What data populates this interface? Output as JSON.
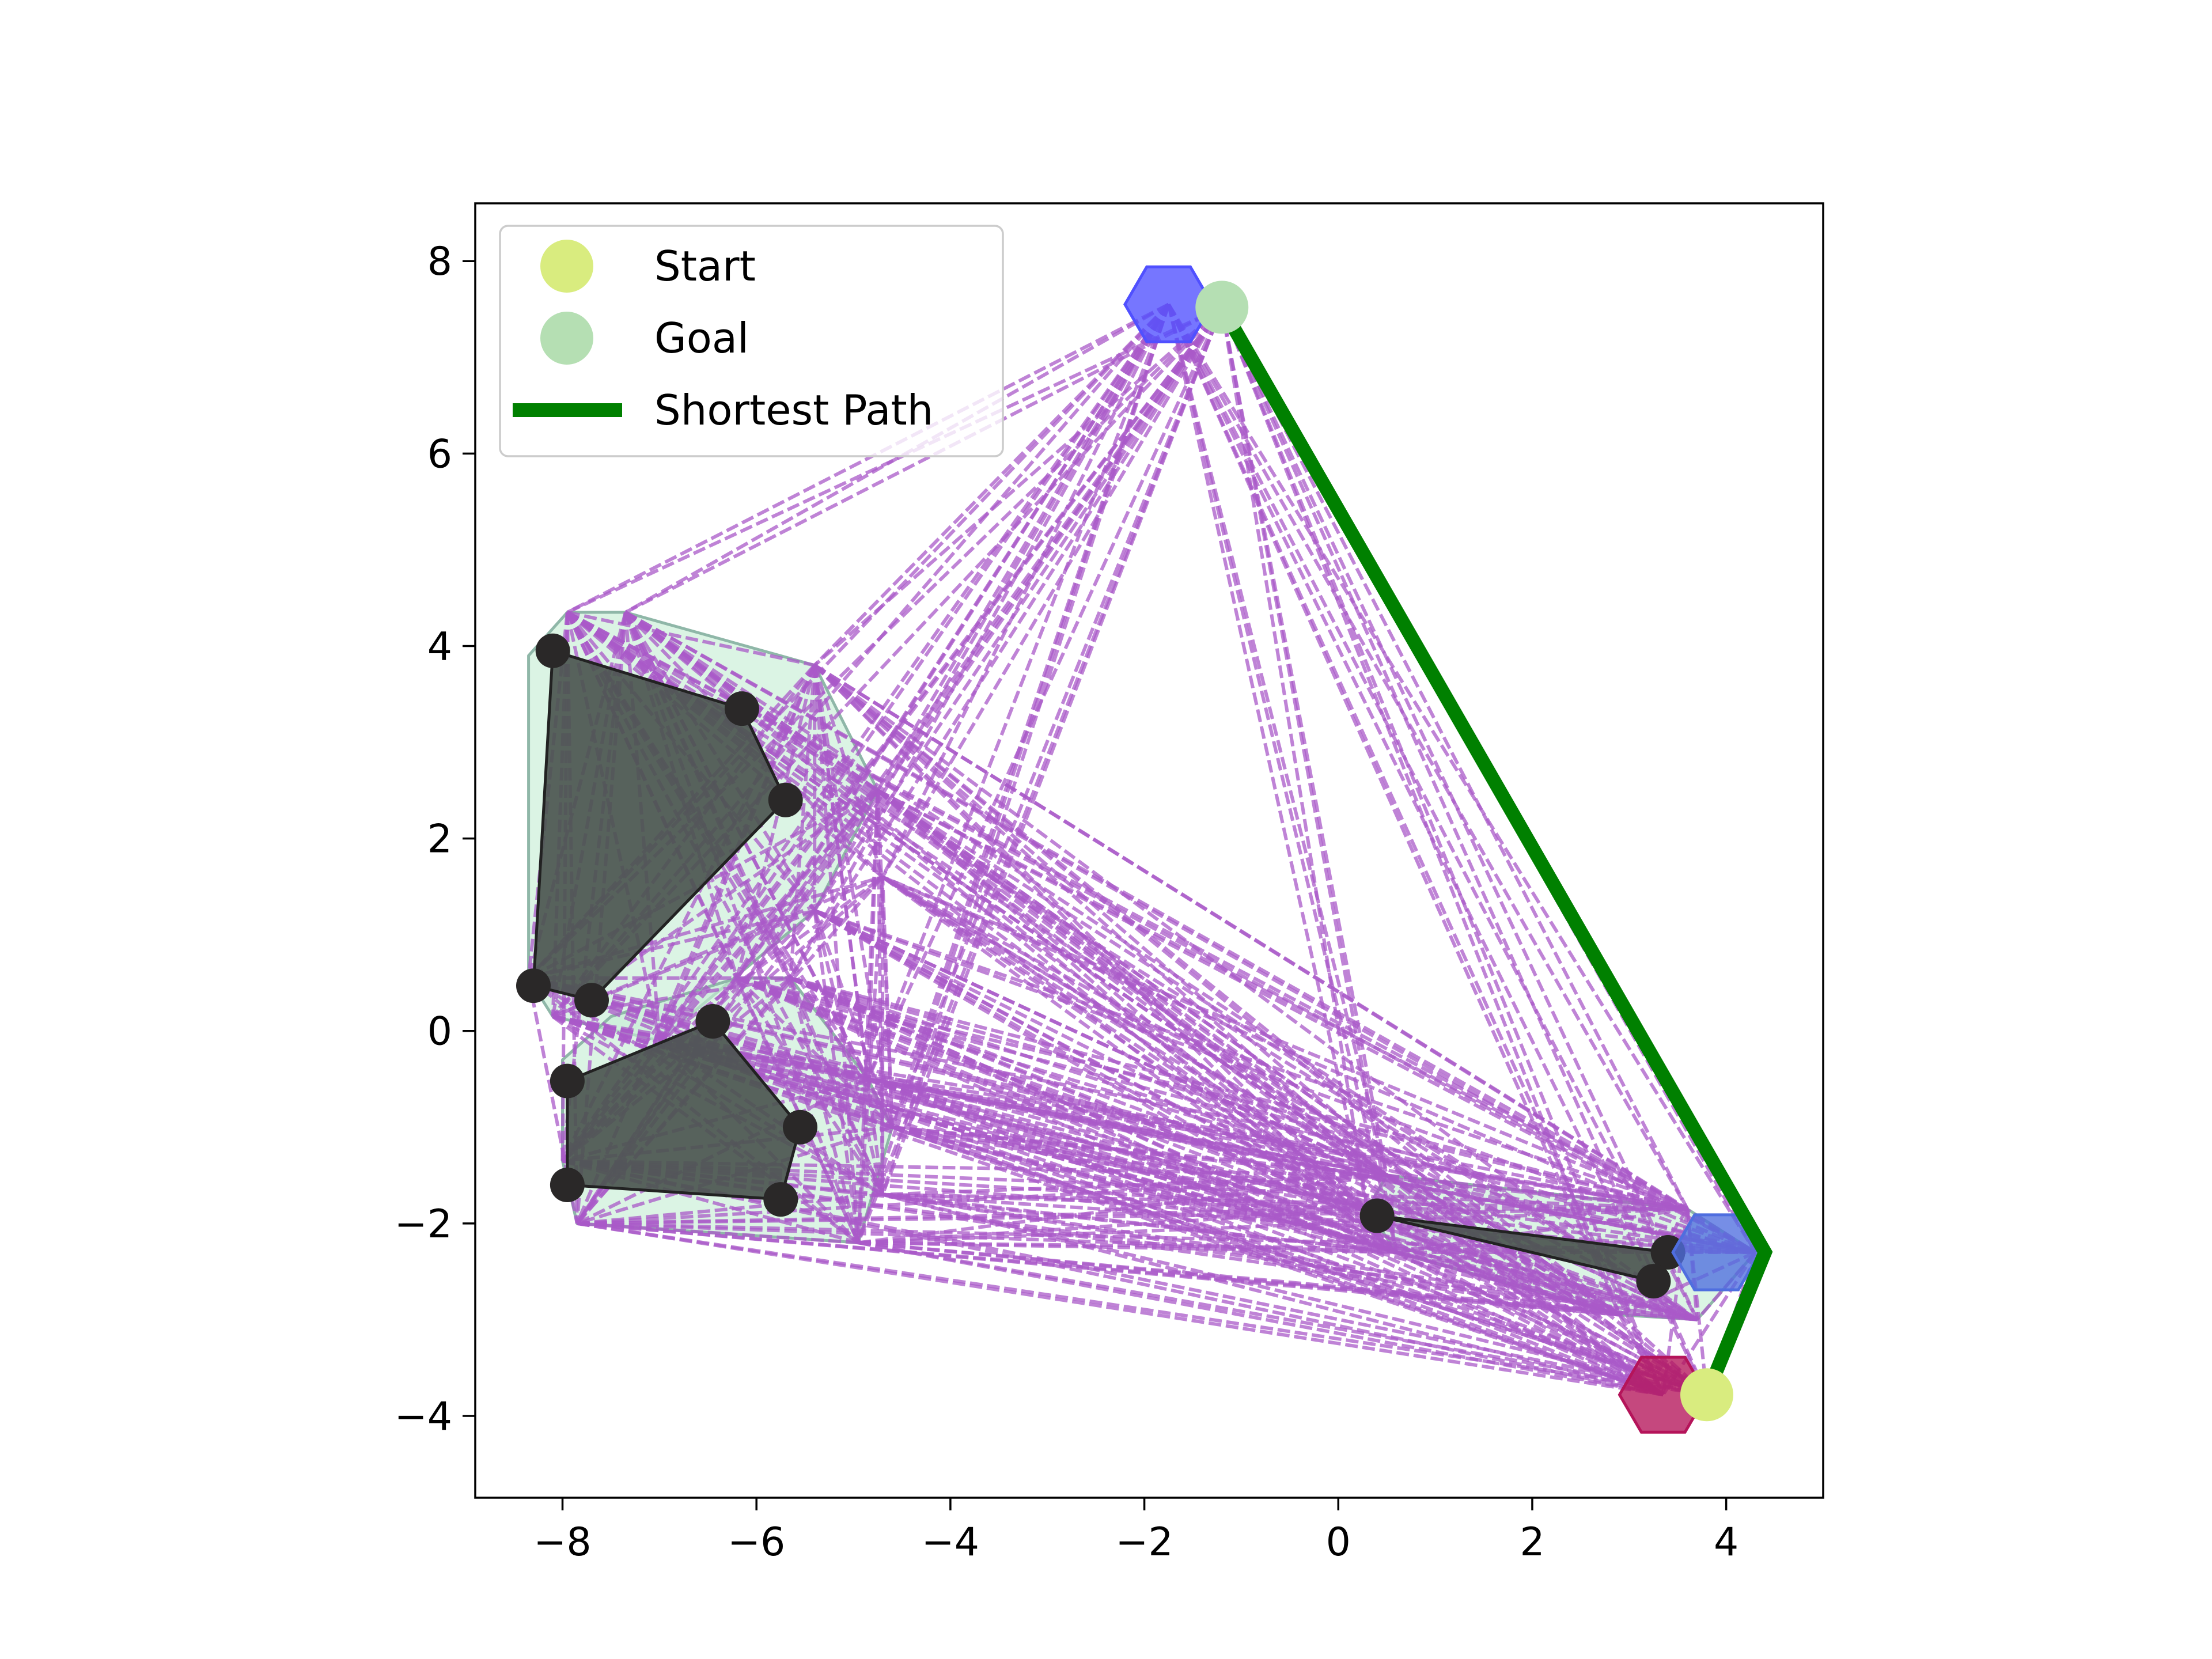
{
  "chart_data": {
    "type": "scatter",
    "xlim": [
      -8.9,
      5.0
    ],
    "ylim": [
      -4.85,
      8.6
    ],
    "xticks": [
      -8,
      -6,
      -4,
      -2,
      0,
      2,
      4
    ],
    "yticks": [
      -4,
      -2,
      0,
      2,
      4,
      6,
      8
    ],
    "xtick_labels": [
      "−8",
      "−6",
      "−4",
      "−2",
      "0",
      "2",
      "4"
    ],
    "ytick_labels": [
      "−4",
      "−2",
      "0",
      "2",
      "4",
      "6",
      "8"
    ],
    "grid": false,
    "legend": {
      "placement": "upper-left",
      "entries": [
        {
          "label": "Start",
          "marker": "circle",
          "color": "#d9ec7f"
        },
        {
          "label": "Goal",
          "marker": "circle",
          "color": "#b5dfb3"
        },
        {
          "label": "Shortest Path",
          "marker": "line",
          "color": "#008000"
        }
      ]
    },
    "start": {
      "x": 3.8,
      "y": -3.78
    },
    "goal": {
      "x": -1.2,
      "y": 7.52
    },
    "shortest_path": [
      [
        -1.2,
        7.52
      ],
      [
        4.4,
        -2.3
      ],
      [
        3.8,
        -3.78
      ]
    ],
    "robot_hexagons": [
      {
        "center": [
          -1.75,
          7.55
        ],
        "color": "#5050ff"
      },
      {
        "center": [
          3.35,
          -3.78
        ],
        "color": "#b5145a"
      },
      {
        "center": [
          3.9,
          -2.3
        ],
        "color": "#4f6edf"
      }
    ],
    "obstacles": [
      {
        "vertices": [
          [
            -8.1,
            3.95
          ],
          [
            -6.15,
            3.35
          ],
          [
            -5.7,
            2.4
          ],
          [
            -7.7,
            0.32
          ],
          [
            -8.3,
            0.47
          ]
        ]
      },
      {
        "vertices": [
          [
            -6.45,
            0.1
          ],
          [
            -5.55,
            -1.0
          ],
          [
            -5.75,
            -1.75
          ],
          [
            -7.95,
            -1.6
          ],
          [
            -7.95,
            -0.52
          ]
        ]
      },
      {
        "vertices": [
          [
            0.4,
            -1.92
          ],
          [
            3.4,
            -2.3
          ],
          [
            3.25,
            -2.6
          ]
        ]
      }
    ],
    "inflated_obstacles": [
      {
        "vertices": [
          [
            -7.95,
            4.35
          ],
          [
            -7.35,
            4.35
          ],
          [
            -5.4,
            3.8
          ],
          [
            -4.75,
            2.5
          ],
          [
            -5.4,
            1.25
          ],
          [
            -7.0,
            -0.1
          ],
          [
            -8.1,
            0.15
          ],
          [
            -8.35,
            0.55
          ],
          [
            -8.35,
            3.9
          ]
        ]
      },
      {
        "vertices": [
          [
            -6.2,
            0.55
          ],
          [
            -5.65,
            0.55
          ],
          [
            -4.85,
            -0.5
          ],
          [
            -4.6,
            -1.0
          ],
          [
            -4.95,
            -2.2
          ],
          [
            -7.85,
            -2.0
          ],
          [
            -8.0,
            -1.35
          ],
          [
            -8.0,
            -0.3
          ],
          [
            -7.5,
            0.15
          ]
        ]
      },
      {
        "vertices": [
          [
            0.5,
            -1.5
          ],
          [
            3.6,
            -1.85
          ],
          [
            4.3,
            -2.3
          ],
          [
            3.7,
            -3.0
          ],
          [
            2.9,
            -2.95
          ],
          [
            0.6,
            -2.3
          ],
          [
            0.3,
            -1.85
          ]
        ]
      }
    ],
    "graph_nodes": [
      [
        -1.2,
        7.52
      ],
      [
        -1.75,
        7.55
      ],
      [
        -7.95,
        4.35
      ],
      [
        -7.35,
        4.35
      ],
      [
        -5.4,
        3.8
      ],
      [
        -4.75,
        2.5
      ],
      [
        -5.4,
        1.25
      ],
      [
        -7.0,
        -0.1
      ],
      [
        -8.1,
        0.15
      ],
      [
        -8.35,
        0.55
      ],
      [
        -6.2,
        0.55
      ],
      [
        -5.65,
        0.55
      ],
      [
        -4.85,
        -0.5
      ],
      [
        -4.6,
        -1.0
      ],
      [
        -4.95,
        -2.2
      ],
      [
        -7.85,
        -2.0
      ],
      [
        -8.0,
        -1.35
      ],
      [
        0.5,
        -1.5
      ],
      [
        3.6,
        -1.85
      ],
      [
        4.3,
        -2.3
      ],
      [
        3.7,
        -3.0
      ],
      [
        2.9,
        -2.95
      ],
      [
        0.6,
        -2.3
      ],
      [
        0.3,
        -1.85
      ],
      [
        3.8,
        -3.78
      ],
      [
        3.35,
        -3.78
      ],
      [
        -4.7,
        -1.7
      ],
      [
        -4.7,
        1.6
      ]
    ]
  }
}
